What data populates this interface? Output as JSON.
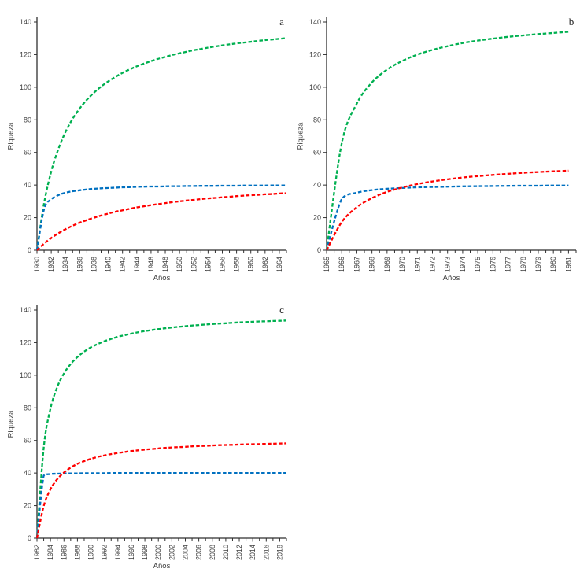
{
  "figure": {
    "background": "#ffffff",
    "panels": [
      "a",
      "b",
      "c"
    ]
  },
  "chart_data": [
    {
      "id": "a",
      "type": "line",
      "panel_label": "a",
      "title": "",
      "xlabel": "Años",
      "ylabel": "Riqueza",
      "ylim": [
        0,
        140
      ],
      "y_ticks": [
        0,
        20,
        40,
        60,
        80,
        100,
        120,
        140
      ],
      "x_min": 1930,
      "x_axis_end": 1965,
      "x_label_step": 2,
      "x_tick_step": 1,
      "x_tick_labels": [
        "1930",
        "1932",
        "1934",
        "1936",
        "1938",
        "1940",
        "1942",
        "1944",
        "1946",
        "1948",
        "1950",
        "1952",
        "1954",
        "1956",
        "1958",
        "1960",
        "1962",
        "1964"
      ],
      "grid": false,
      "legend": "none",
      "x": [
        1930,
        1931,
        1932,
        1933,
        1934,
        1935,
        1936,
        1937,
        1938,
        1939,
        1940,
        1941,
        1942,
        1943,
        1944,
        1945,
        1946,
        1947,
        1948,
        1949,
        1950,
        1951,
        1952,
        1953,
        1954,
        1955,
        1956,
        1957,
        1958,
        1959,
        1960,
        1961,
        1962,
        1963,
        1964,
        1965
      ],
      "series": [
        {
          "name": "green-dashed",
          "color": "#00B050",
          "values": [
            0,
            29,
            48.3,
            62.1,
            72.5,
            80.6,
            87,
            92.3,
            96.7,
            100.4,
            103.6,
            106.3,
            108.8,
            110.9,
            112.8,
            114.5,
            116,
            117.4,
            118.6,
            119.8,
            120.8,
            121.8,
            122.7,
            123.5,
            124.3,
            125,
            125.7,
            126.3,
            126.9,
            127.4,
            127.9,
            128.4,
            128.9,
            129.3,
            129.7,
            130.1
          ]
        },
        {
          "name": "blue-dashed",
          "color": "#0070C0",
          "values": [
            0,
            25.4,
            31.2,
            33.8,
            35.3,
            36.2,
            36.8,
            37.3,
            37.7,
            38,
            38.2,
            38.4,
            38.6,
            38.7,
            38.9,
            39,
            39.1,
            39.1,
            39.2,
            39.3,
            39.3,
            39.4,
            39.4,
            39.5,
            39.5,
            39.5,
            39.6,
            39.6,
            39.6,
            39.7,
            39.7,
            39.7,
            39.7,
            39.8,
            39.8,
            39.8
          ]
        },
        {
          "name": "red-dashed",
          "color": "#FF0000",
          "values": [
            0,
            4.1,
            7.5,
            10.4,
            12.9,
            15,
            16.9,
            18.5,
            20,
            21.3,
            22.5,
            23.6,
            24.5,
            25.4,
            26.3,
            27,
            27.7,
            28.3,
            28.9,
            29.5,
            30,
            30.5,
            30.9,
            31.4,
            31.8,
            32.1,
            32.5,
            32.8,
            33.2,
            33.5,
            33.8,
            34,
            34.3,
            34.5,
            34.8,
            35
          ]
        }
      ]
    },
    {
      "id": "b",
      "type": "line",
      "panel_label": "b",
      "title": "",
      "xlabel": "Años",
      "ylabel": "Riqueza",
      "ylim": [
        0,
        140
      ],
      "y_ticks": [
        0,
        20,
        40,
        60,
        80,
        100,
        120,
        140
      ],
      "x_min": 1965,
      "x_axis_end": 1981.5,
      "x_label_step": 1,
      "x_tick_step": 0.5,
      "x_tick_labels": [
        "1965",
        "1966",
        "1967",
        "1968",
        "1969",
        "1970",
        "1971",
        "1972",
        "1973",
        "1974",
        "1975",
        "1976",
        "1977",
        "1978",
        "1979",
        "1980",
        "1981"
      ],
      "grid": false,
      "legend": "none",
      "x": [
        1965,
        1966,
        1967,
        1968,
        1969,
        1970,
        1971,
        1972,
        1973,
        1974,
        1975,
        1976,
        1977,
        1978,
        1979,
        1980,
        1981
      ],
      "series": [
        {
          "name": "green-dashed",
          "color": "#00B050",
          "values": [
            0,
            65.5,
            90,
            102.9,
            110.8,
            116.1,
            120,
            122.9,
            125.2,
            127.1,
            128.6,
            129.8,
            130.9,
            131.8,
            132.6,
            133.3,
            134
          ]
        },
        {
          "name": "blue-dashed",
          "color": "#0070C0",
          "values": [
            0,
            31.4,
            35.3,
            36.9,
            37.7,
            38.2,
            38.6,
            38.8,
            39,
            39.2,
            39.3,
            39.4,
            39.5,
            39.6,
            39.6,
            39.7,
            39.7
          ]
        },
        {
          "name": "red-dashed",
          "color": "#FF0000",
          "values": [
            0,
            17.3,
            26.4,
            32,
            35.8,
            38.5,
            40.6,
            42.2,
            43.5,
            44.6,
            45.5,
            46.2,
            46.9,
            47.5,
            48,
            48.4,
            48.8
          ]
        }
      ]
    },
    {
      "id": "c",
      "type": "line",
      "panel_label": "c",
      "title": "",
      "xlabel": "Años",
      "ylabel": "Riqueza",
      "ylim": [
        0,
        140
      ],
      "y_ticks": [
        0,
        20,
        40,
        60,
        80,
        100,
        120,
        140
      ],
      "x_min": 1982,
      "x_axis_end": 2019,
      "x_label_step": 2,
      "x_tick_step": 1,
      "x_tick_labels": [
        "1982",
        "1984",
        "1986",
        "1988",
        "1990",
        "1992",
        "1994",
        "1996",
        "1998",
        "2000",
        "2002",
        "2004",
        "2006",
        "2008",
        "2010",
        "2012",
        "2014",
        "2016",
        "2018"
      ],
      "grid": false,
      "legend": "none",
      "x": [
        1982,
        1983,
        1984,
        1985,
        1986,
        1987,
        1988,
        1989,
        1990,
        1991,
        1992,
        1993,
        1994,
        1995,
        1996,
        1997,
        1998,
        1999,
        2000,
        2001,
        2002,
        2003,
        2004,
        2005,
        2006,
        2007,
        2008,
        2009,
        2010,
        2011,
        2012,
        2013,
        2014,
        2015,
        2016,
        2017,
        2018,
        2019
      ],
      "series": [
        {
          "name": "green-dashed",
          "color": "#00B050",
          "values": [
            0,
            55.6,
            79.4,
            92.7,
            101.1,
            106.9,
            111.2,
            114.5,
            117.1,
            119.1,
            120.9,
            122.3,
            123.6,
            124.6,
            125.5,
            126.4,
            127.1,
            127.7,
            128.3,
            128.8,
            129.3,
            129.7,
            130.1,
            130.5,
            130.8,
            131.1,
            131.4,
            131.7,
            131.9,
            132.2,
            132.4,
            132.6,
            132.8,
            133,
            133.1,
            133.3,
            133.4,
            133.6
          ]
        },
        {
          "name": "blue-dashed",
          "color": "#0070C0",
          "values": [
            0,
            38.5,
            39.4,
            39.6,
            39.7,
            39.8,
            39.8,
            39.9,
            39.9,
            39.9,
            39.9,
            40,
            40,
            40,
            40,
            40,
            40,
            40,
            40,
            40,
            40,
            40,
            40,
            40,
            40,
            40,
            40,
            40,
            40,
            40,
            40,
            40,
            40,
            40,
            40,
            40,
            40,
            40
          ]
        },
        {
          "name": "red-dashed",
          "color": "#FF0000",
          "values": [
            0,
            19.8,
            30,
            36.2,
            40.3,
            43.3,
            45.6,
            47.3,
            48.7,
            49.9,
            50.8,
            51.6,
            52.3,
            52.9,
            53.5,
            53.9,
            54.4,
            54.7,
            55.1,
            55.4,
            55.7,
            55.9,
            56.1,
            56.4,
            56.6,
            56.7,
            56.9,
            57.1,
            57.2,
            57.3,
            57.5,
            57.6,
            57.7,
            57.8,
            57.9,
            58,
            58.1,
            58.2
          ]
        }
      ]
    }
  ],
  "style": {
    "axis_color": "#2f2f2f",
    "tick_text_color": "#3c3c3c"
  }
}
